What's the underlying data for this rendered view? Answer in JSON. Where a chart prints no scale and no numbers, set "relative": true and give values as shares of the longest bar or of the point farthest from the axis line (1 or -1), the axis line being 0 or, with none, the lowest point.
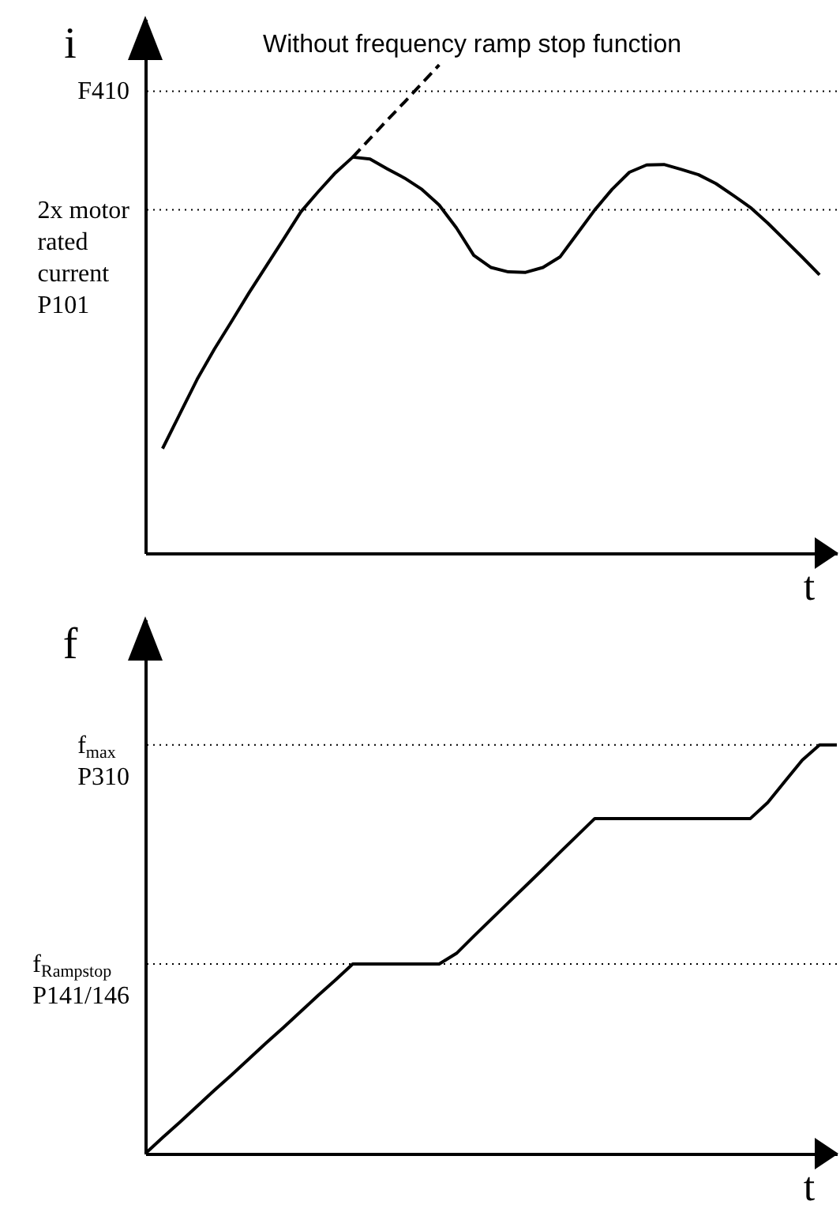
{
  "chart_data": [
    {
      "type": "line",
      "relative": true,
      "ylabel": "i",
      "xlabel": "t",
      "marker": "none",
      "categories": [
        null,
        null,
        null,
        null,
        null,
        null,
        null,
        null,
        null,
        null,
        null,
        null,
        null,
        null,
        null,
        null,
        null,
        null,
        null,
        null,
        null,
        null,
        null,
        null,
        null,
        null,
        null,
        null,
        null,
        null,
        null,
        null,
        null,
        null,
        null,
        null,
        null,
        null,
        null,
        null,
        null
      ],
      "series": [
        {
          "color": "#000000",
          "line_style": "solid",
          "values": [
            null,
            0.214,
            0.285,
            0.356,
            0.418,
            0.475,
            0.533,
            0.588,
            0.643,
            0.699,
            0.74,
            0.779,
            0.811,
            0.807,
            0.787,
            0.768,
            0.745,
            0.713,
            0.666,
            0.61,
            0.585,
            0.576,
            0.575,
            0.585,
            0.607,
            0.655,
            0.703,
            0.745,
            0.78,
            0.795,
            0.796,
            0.786,
            0.775,
            0.757,
            0.733,
            0.708,
            0.676,
            0.641,
            0.606,
            0.57,
            null
          ]
        },
        {
          "type": "line",
          "color": "#000000",
          "line_style": "dashed",
          "values": [
            null,
            null,
            null,
            null,
            null,
            null,
            null,
            null,
            null,
            null,
            null,
            null,
            0.811,
            0.849,
            0.887,
            0.924,
            0.962,
            1.0,
            null,
            null,
            null,
            null,
            null,
            null,
            null,
            null,
            null,
            null,
            null,
            null,
            null,
            null,
            null,
            null,
            null,
            null,
            null,
            null,
            null,
            null,
            null
          ]
        }
      ],
      "ref_lines": [
        {
          "axis": "y",
          "value": 0.946,
          "label": "F410",
          "line_style": "dotted"
        },
        {
          "axis": "y",
          "value": 0.703,
          "label": "2x motor rated current P101",
          "line_style": "dotted"
        }
      ],
      "annotations": [
        "Without frequency ramp stop function"
      ]
    },
    {
      "type": "line",
      "relative": true,
      "ylabel": "f",
      "xlabel": "t",
      "marker": "none",
      "categories": [
        null,
        null,
        null,
        null,
        null,
        null,
        null,
        null,
        null,
        null,
        null,
        null,
        null,
        null,
        null,
        null,
        null,
        null,
        null,
        null,
        null,
        null,
        null,
        null,
        null,
        null,
        null,
        null,
        null,
        null,
        null,
        null,
        null,
        null,
        null,
        null,
        null,
        null,
        null,
        null,
        null
      ],
      "series": [
        {
          "color": "#000000",
          "line_style": "solid",
          "values": [
            0,
            0.039,
            0.077,
            0.116,
            0.155,
            0.193,
            0.232,
            0.271,
            0.309,
            0.348,
            0.387,
            0.425,
            0.464,
            0.464,
            0.464,
            0.464,
            0.464,
            0.464,
            0.49,
            0.532,
            0.573,
            0.614,
            0.655,
            0.696,
            0.738,
            0.779,
            0.82,
            0.82,
            0.82,
            0.82,
            0.82,
            0.82,
            0.82,
            0.82,
            0.82,
            0.82,
            0.859,
            0.911,
            0.963,
            1.0,
            1.0
          ]
        }
      ],
      "ref_lines": [
        {
          "axis": "y",
          "value": 1.0,
          "label": "f$_{max}$ P310",
          "line_style": "dotted"
        },
        {
          "axis": "y",
          "value": 0.464,
          "label": "f$_{Rampstop}$ P141/146",
          "line_style": "dotted"
        }
      ]
    }
  ]
}
